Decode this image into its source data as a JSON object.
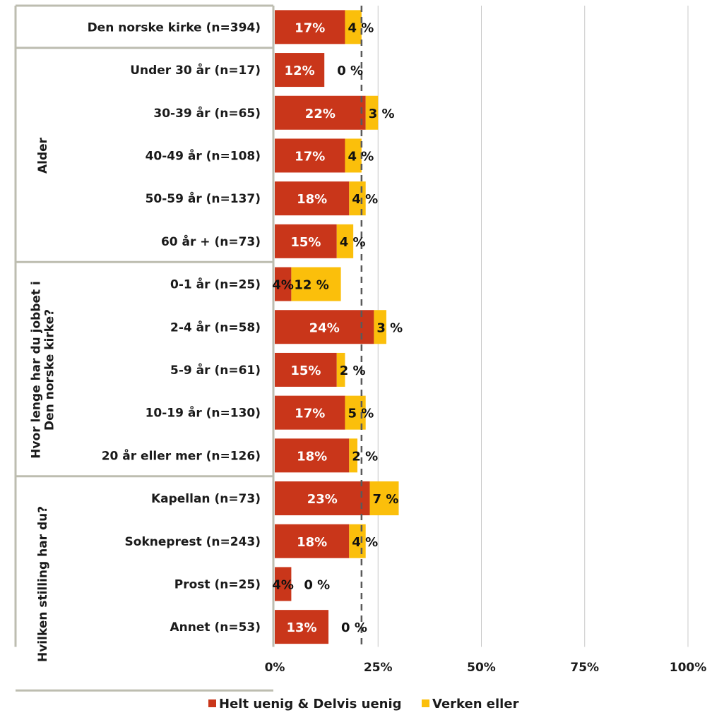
{
  "chart_data": {
    "type": "bar",
    "orientation": "horizontal",
    "stacked": true,
    "xlim": [
      0,
      100
    ],
    "x_ticks": [
      "0%",
      "25%",
      "50%",
      "75%",
      "100%"
    ],
    "reference_line_value": 21,
    "grid": true,
    "legend_position": "bottom",
    "colors": {
      "series1": "#c9361a",
      "series2": "#fbbf0b"
    },
    "groups": [
      {
        "name": "",
        "start": 0,
        "end": 0
      },
      {
        "name": "Alder",
        "start": 1,
        "end": 5
      },
      {
        "name": "Hvor lenge har du jobbet i Den norske kirke?",
        "name_lines": [
          "Hvor lenge har du jobbet i",
          "Den norske kirke?"
        ],
        "start": 6,
        "end": 10
      },
      {
        "name": "Hvilken stilling har du?",
        "name_lines": [
          "Hvilken stilling har du?"
        ],
        "start": 11,
        "end": 15
      }
    ],
    "categories": [
      "Den norske kirke (n=394)",
      "Under 30 år (n=17)",
      "30-39 år (n=65)",
      "40-49 år (n=108)",
      "50-59 år (n=137)",
      "60 år + (n=73)",
      "0-1 år (n=25)",
      "2-4 år (n=58)",
      "5-9 år (n=61)",
      "10-19 år (n=130)",
      "20 år eller mer (n=126)",
      "Kapellan (n=73)",
      "Sokneprest (n=243)",
      "Prost (n=25)",
      "Annet (n=53)"
    ],
    "series": [
      {
        "name": "Helt uenig & Delvis uenig",
        "values": [
          17,
          12,
          22,
          17,
          18,
          15,
          4,
          24,
          15,
          17,
          18,
          23,
          18,
          4,
          13
        ],
        "labels": [
          "17%",
          "12%",
          "22%",
          "17%",
          "18%",
          "15%",
          "4%",
          "24%",
          "15%",
          "17%",
          "18%",
          "23%",
          "18%",
          "4%",
          "13%"
        ]
      },
      {
        "name": "Verken eller",
        "values": [
          4,
          0,
          3,
          4,
          4,
          4,
          12,
          3,
          2,
          5,
          2,
          7,
          4,
          0,
          0
        ],
        "labels": [
          "4 %",
          "0 %",
          "3 %",
          "4 %",
          "4 %",
          "4 %",
          "12 %",
          "3 %",
          "2 %",
          "5 %",
          "2 %",
          "7 %",
          "4 %",
          "0 %",
          "0 %"
        ]
      }
    ]
  }
}
